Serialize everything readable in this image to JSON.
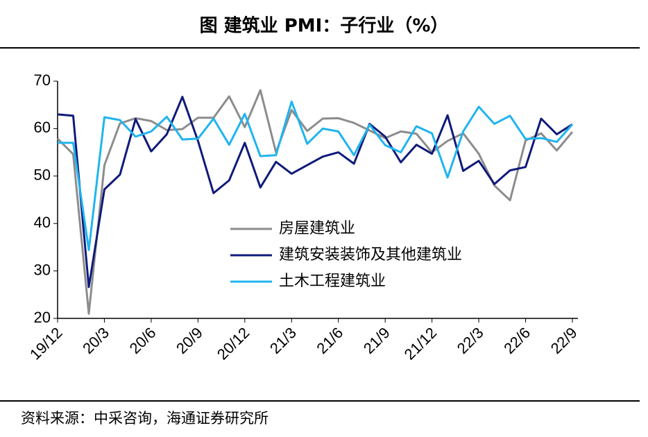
{
  "chart_data": {
    "type": "line",
    "title": "图  建筑业 PMI：子行业（%）",
    "source": "资料来源：中采咨询，海通证券研究所",
    "categories": [
      "19/12",
      null,
      null,
      "20/3",
      null,
      null,
      "20/6",
      null,
      null,
      "20/9",
      null,
      null,
      "20/12",
      null,
      null,
      "21/3",
      null,
      null,
      "21/6",
      null,
      null,
      "21/9",
      null,
      null,
      "21/12",
      null,
      null,
      "22/3",
      null,
      null,
      "22/6",
      null,
      null,
      "22/9"
    ],
    "series": [
      {
        "name": "房屋建筑业",
        "color": "#8c8c8c",
        "values": [
          57.9,
          54.6,
          21.0,
          52.3,
          61.1,
          62.2,
          61.6,
          59.7,
          59.9,
          62.3,
          62.3,
          66.8,
          60.3,
          68.1,
          55.0,
          63.9,
          59.5,
          62.1,
          62.2,
          61.2,
          59.6,
          58.0,
          59.4,
          58.9,
          55.0,
          57.4,
          59.0,
          54.7,
          48.0,
          44.9,
          57.5,
          59.0,
          55.4,
          59.3
        ]
      },
      {
        "name": "建筑安装装饰及其他建筑业",
        "color": "#0f1a7a",
        "values": [
          63.0,
          62.7,
          26.6,
          47.2,
          50.3,
          62.0,
          55.2,
          58.8,
          66.7,
          57.4,
          46.4,
          49.1,
          57.0,
          47.6,
          53.0,
          50.5,
          52.3,
          54.1,
          55.0,
          52.6,
          61.0,
          58.3,
          52.9,
          56.6,
          54.7,
          62.8,
          51.1,
          53.2,
          48.3,
          51.2,
          51.9,
          62.1,
          58.8,
          60.9
        ]
      },
      {
        "name": "土木工程建筑业",
        "color": "#1fb4ef",
        "values": [
          57.0,
          57.0,
          34.4,
          62.4,
          61.8,
          58.3,
          59.4,
          62.5,
          57.7,
          57.9,
          62.1,
          56.6,
          63.1,
          54.2,
          54.4,
          65.7,
          56.8,
          60.0,
          59.4,
          54.4,
          60.8,
          56.5,
          55.0,
          60.5,
          59.0,
          49.7,
          59.4,
          64.6,
          61.0,
          62.7,
          57.8,
          58.0,
          57.2,
          60.9
        ]
      }
    ],
    "ylim": [
      20,
      70
    ],
    "yticks": [
      20,
      30,
      40,
      50,
      60,
      70
    ],
    "grid": false
  }
}
